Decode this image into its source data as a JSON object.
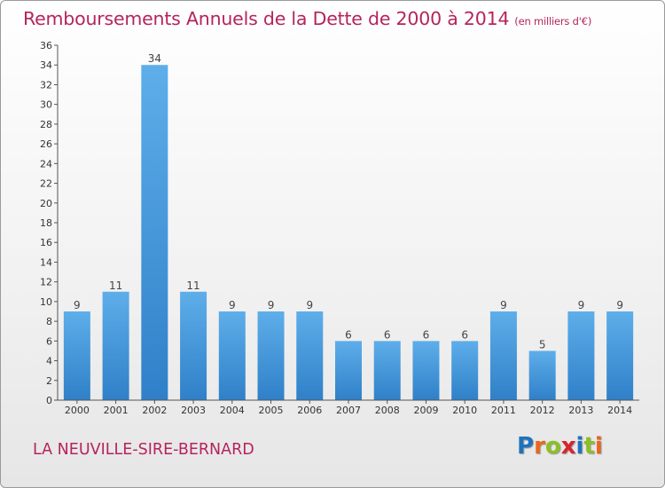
{
  "chart_data": {
    "type": "bar",
    "title": "Remboursements Annuels de la Dette de 2000 à 2014",
    "unit_note": "(en milliers d'€)",
    "categories": [
      "2000",
      "2001",
      "2002",
      "2003",
      "2004",
      "2005",
      "2006",
      "2007",
      "2008",
      "2009",
      "2010",
      "2011",
      "2012",
      "2013",
      "2014"
    ],
    "values": [
      9,
      11,
      34,
      11,
      9,
      9,
      9,
      6,
      6,
      6,
      6,
      9,
      5,
      9,
      9
    ],
    "ylim": [
      0,
      36
    ],
    "yticks": [
      0,
      2,
      4,
      6,
      8,
      10,
      12,
      14,
      16,
      18,
      20,
      22,
      24,
      26,
      28,
      30,
      32,
      34,
      36
    ],
    "grid": false,
    "bar_color": "#4a9de0"
  },
  "footer": {
    "commune": "LA NEUVILLE-SIRE-BERNARD",
    "logo": "Proxiti"
  },
  "colors": {
    "accent": "#b5245c",
    "axis": "#555555"
  }
}
